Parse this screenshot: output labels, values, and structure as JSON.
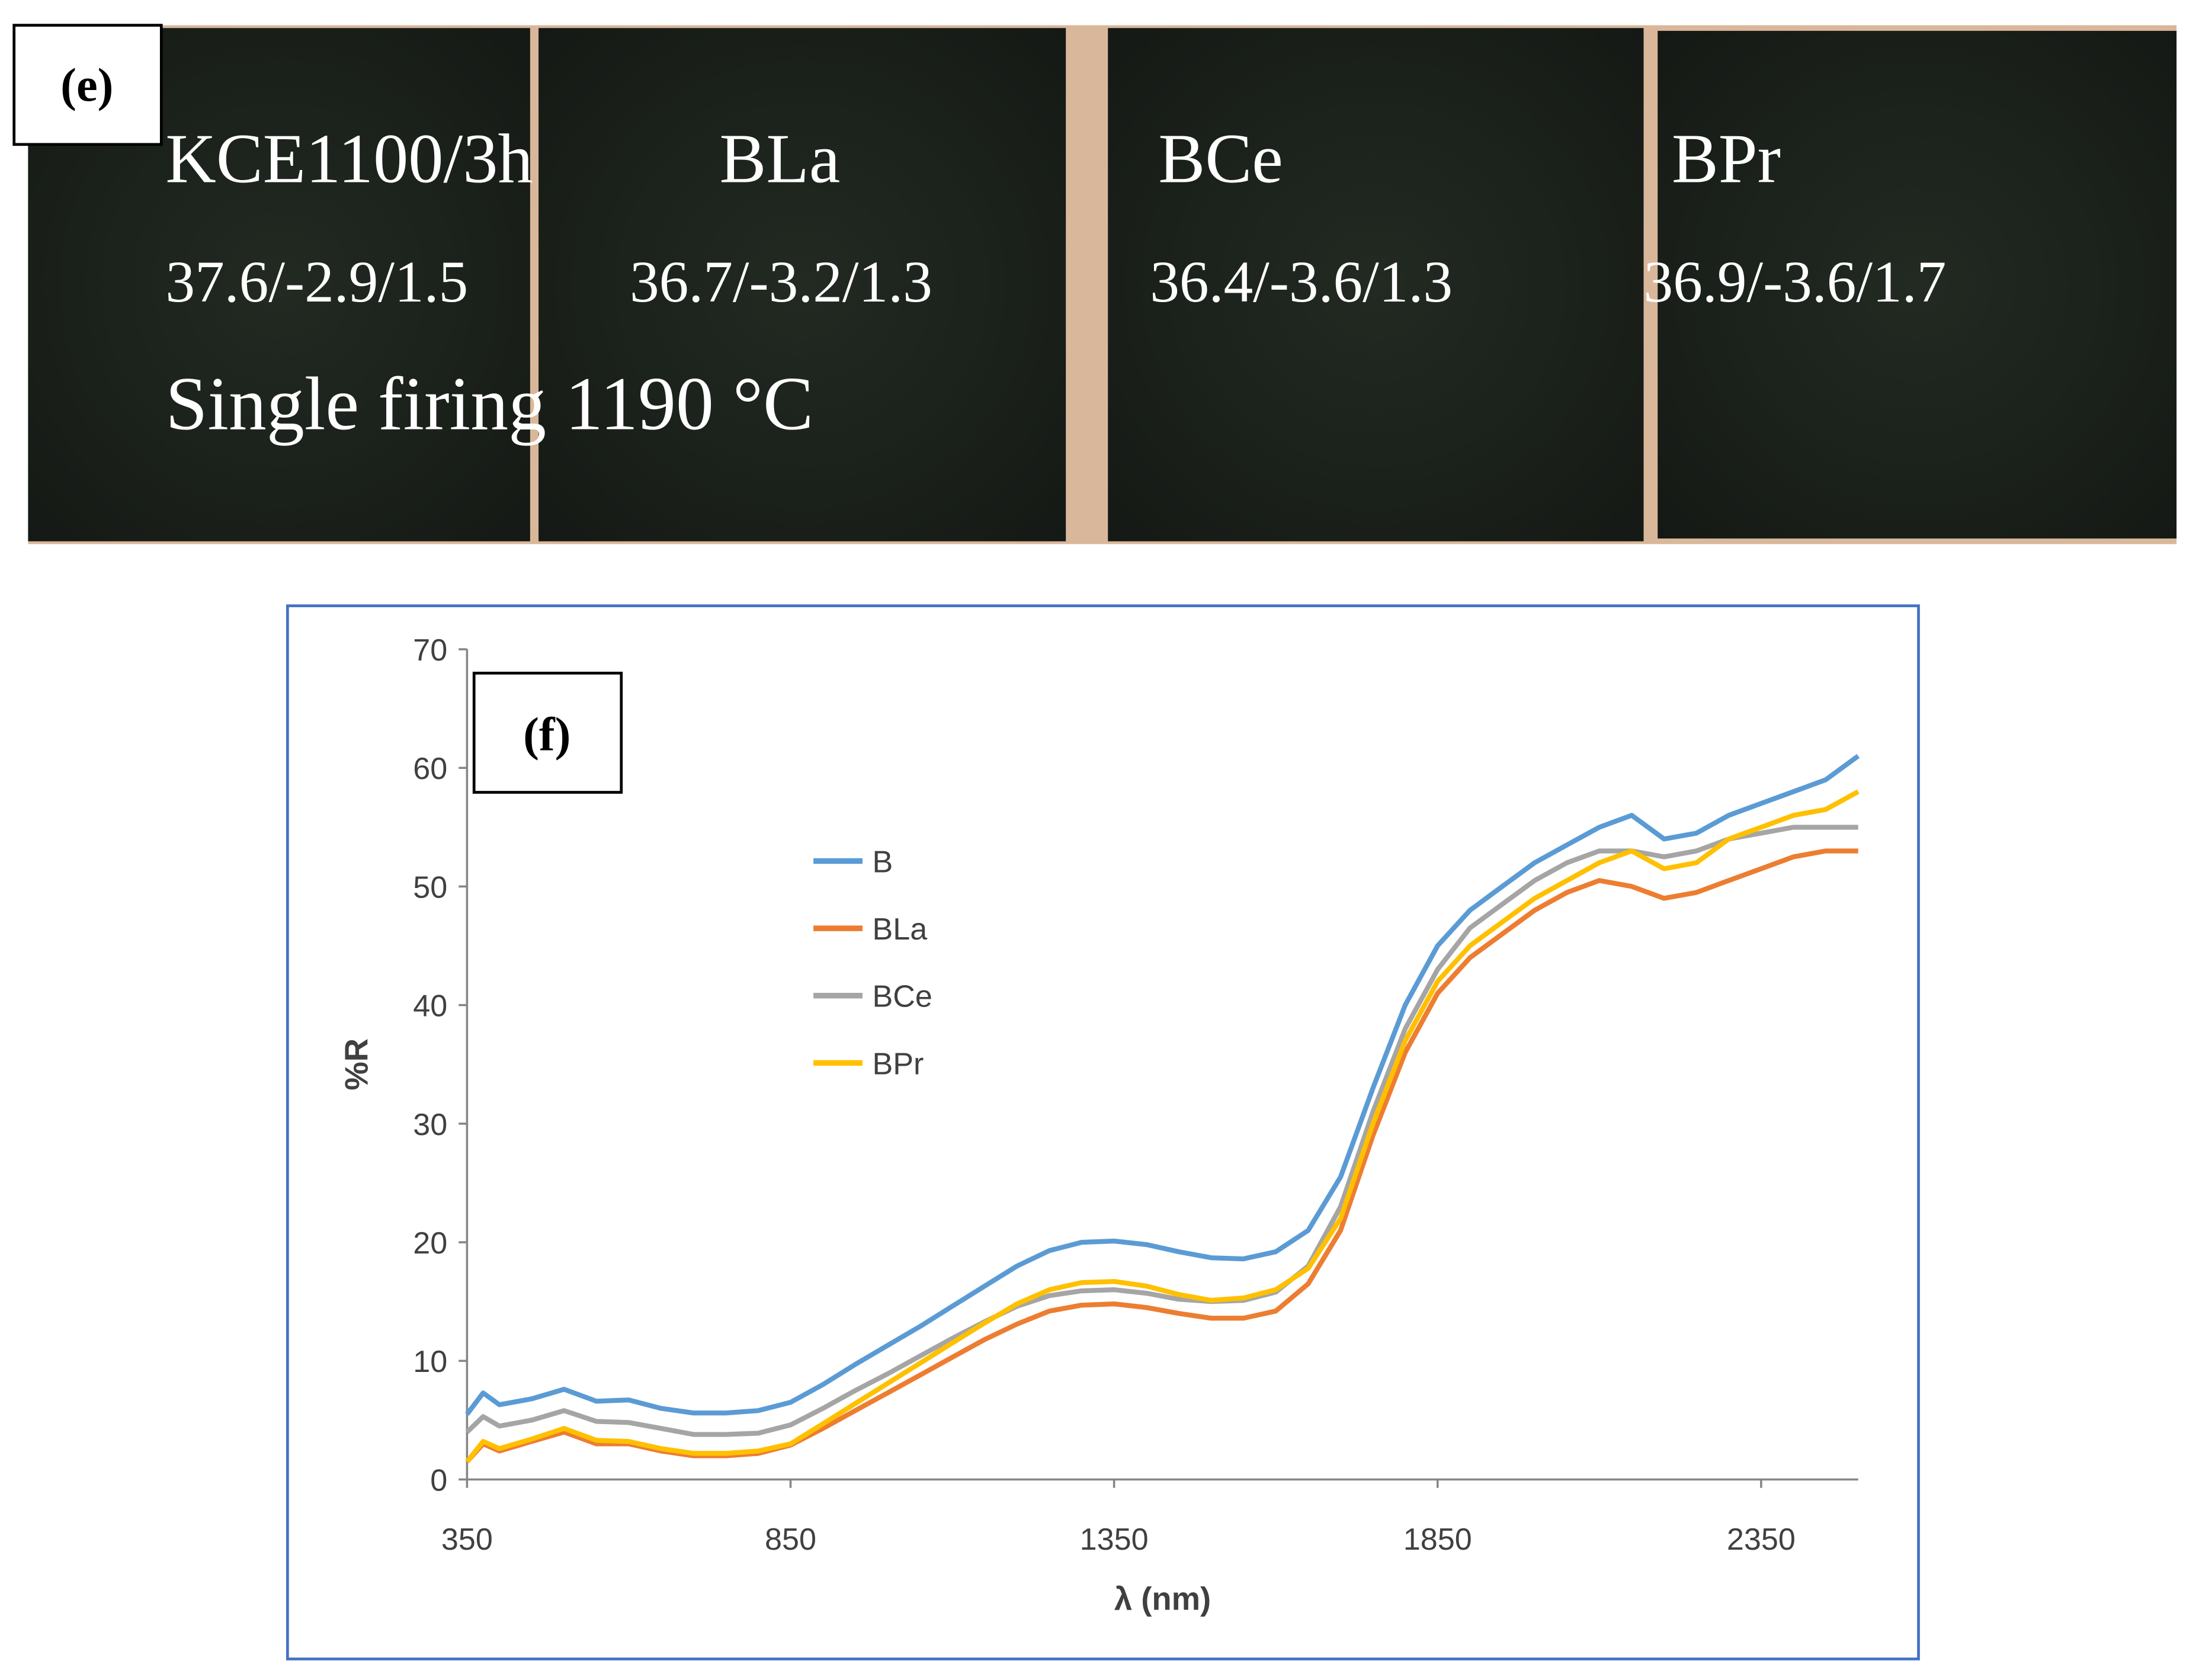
{
  "photo_panel": {
    "label": "(e)",
    "samples": [
      {
        "name": "KCE1100/3h",
        "lab": "37.6/-2.9/1.5"
      },
      {
        "name": "BLa",
        "lab": "36.7/-3.2/1.3"
      },
      {
        "name": "BCe",
        "lab": "36.4/-3.6/1.3"
      },
      {
        "name": "BPr",
        "lab": "36.9/-3.6/1.7"
      }
    ],
    "caption": "Single firing 1190 °C"
  },
  "chart_data": {
    "type": "line",
    "label": "(f)",
    "x_label": "λ (nm)",
    "y_label": "%R",
    "xlim": [
      350,
      2500
    ],
    "xticks": [
      350,
      850,
      1350,
      1850,
      2350
    ],
    "ylim": [
      0,
      70
    ],
    "yticks": [
      0,
      10,
      20,
      30,
      40,
      50,
      60,
      70
    ],
    "grid": false,
    "legend": "upper left",
    "x": [
      350,
      375,
      400,
      450,
      500,
      550,
      600,
      650,
      700,
      750,
      800,
      850,
      900,
      950,
      1000,
      1050,
      1100,
      1150,
      1200,
      1250,
      1300,
      1350,
      1400,
      1450,
      1500,
      1550,
      1600,
      1650,
      1700,
      1750,
      1800,
      1850,
      1900,
      1950,
      2000,
      2050,
      2100,
      2150,
      2200,
      2250,
      2300,
      2350,
      2400,
      2450,
      2500
    ],
    "series": [
      {
        "name": "B",
        "color": "#5b9bd5",
        "values": [
          5.5,
          7.3,
          6.3,
          6.8,
          7.6,
          6.6,
          6.7,
          6.0,
          5.6,
          5.6,
          5.8,
          6.5,
          8,
          9.7,
          11.3,
          12.9,
          14.6,
          16.3,
          18,
          19.3,
          20,
          20.1,
          19.8,
          19.2,
          18.7,
          18.6,
          19.2,
          21,
          25.5,
          33,
          40,
          45,
          48,
          50,
          52,
          53.5,
          55,
          56,
          54,
          54.5,
          56,
          57,
          58,
          59,
          61
        ]
      },
      {
        "name": "BLa",
        "color": "#ed7d31",
        "values": [
          1.5,
          3.0,
          2.4,
          3.2,
          4.0,
          3.0,
          3.0,
          2.4,
          2.0,
          2.0,
          2.2,
          2.9,
          4.3,
          5.8,
          7.3,
          8.8,
          10.3,
          11.8,
          13.1,
          14.2,
          14.7,
          14.8,
          14.5,
          14.0,
          13.6,
          13.6,
          14.2,
          16.5,
          21,
          29,
          36,
          41,
          44,
          46,
          48,
          49.5,
          50.5,
          50,
          49,
          49.5,
          50.5,
          51.5,
          52.5,
          53,
          53
        ]
      },
      {
        "name": "BCe",
        "color": "#a5a5a5",
        "values": [
          4,
          5.3,
          4.5,
          5.0,
          5.8,
          4.9,
          4.8,
          4.3,
          3.8,
          3.8,
          3.9,
          4.6,
          6,
          7.5,
          8.9,
          10.4,
          11.9,
          13.3,
          14.6,
          15.5,
          15.9,
          16,
          15.7,
          15.2,
          15,
          15.1,
          15.8,
          18,
          23,
          31,
          38,
          43,
          46.5,
          48.5,
          50.5,
          52,
          53,
          53,
          52.5,
          53,
          54,
          54.5,
          55,
          55,
          55
        ]
      },
      {
        "name": "BPr",
        "color": "#ffc000",
        "values": [
          1.5,
          3.2,
          2.6,
          3.4,
          4.3,
          3.3,
          3.2,
          2.6,
          2.2,
          2.2,
          2.4,
          3.0,
          4.7,
          6.4,
          8.1,
          9.8,
          11.5,
          13.2,
          14.8,
          16,
          16.6,
          16.7,
          16.3,
          15.6,
          15.1,
          15.3,
          16,
          17.8,
          22,
          30,
          37,
          42,
          45,
          47,
          49,
          50.5,
          52,
          53,
          51.5,
          52,
          54,
          55,
          56,
          56.5,
          58
        ]
      }
    ]
  }
}
